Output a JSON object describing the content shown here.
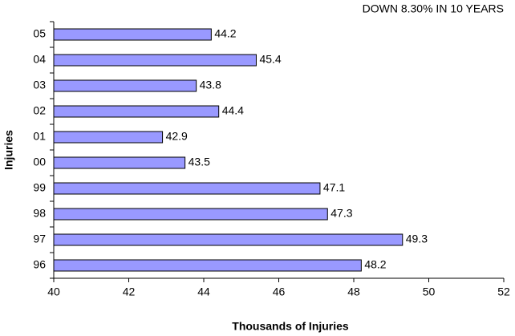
{
  "chart_data": {
    "type": "barh",
    "annotation": "DOWN 8.30% IN 10 YEARS",
    "xlabel": "Thousands of Injuries",
    "ylabel": "Injuries",
    "categories": [
      "05",
      "04",
      "03",
      "02",
      "01",
      "00",
      "99",
      "98",
      "97",
      "96"
    ],
    "values": [
      44.2,
      45.4,
      43.8,
      44.4,
      42.9,
      43.5,
      47.1,
      47.3,
      49.3,
      48.2
    ],
    "color": "#9999ff",
    "xlim": [
      40,
      52
    ],
    "xticks": [
      40,
      42,
      44,
      46,
      48,
      50,
      52
    ],
    "grid": false
  }
}
